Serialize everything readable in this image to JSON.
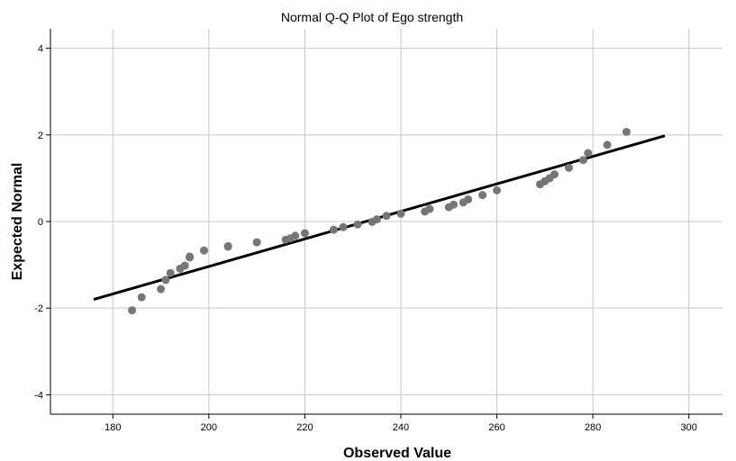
{
  "chart_data": {
    "type": "scatter",
    "title": "Normal Q-Q Plot of Ego strength",
    "xlabel": "Observed Value",
    "ylabel": "Expected Normal",
    "xlim": [
      167,
      307
    ],
    "ylim": [
      -4.45,
      4.45
    ],
    "xticks": [
      180,
      200,
      220,
      240,
      260,
      280,
      300
    ],
    "yticks": [
      -4,
      -2,
      0,
      2,
      4
    ],
    "grid": true,
    "colors": {
      "points": "#767676",
      "line": "#000000",
      "grid": "#c8c8c8",
      "axis": "#000000"
    },
    "points": [
      [
        184,
        -2.05
      ],
      [
        186,
        -1.75
      ],
      [
        190,
        -1.56
      ],
      [
        191,
        -1.35
      ],
      [
        192,
        -1.19
      ],
      [
        194,
        -1.09
      ],
      [
        195,
        -1.02
      ],
      [
        196,
        -0.83
      ],
      [
        196,
        -0.81
      ],
      [
        199,
        -0.67
      ],
      [
        204,
        -0.57
      ],
      [
        204,
        -0.58
      ],
      [
        210,
        -0.48
      ],
      [
        216,
        -0.42
      ],
      [
        217,
        -0.39
      ],
      [
        218,
        -0.33
      ],
      [
        220,
        -0.27
      ],
      [
        226,
        -0.19
      ],
      [
        228,
        -0.13
      ],
      [
        231,
        -0.07
      ],
      [
        234,
        -0.01
      ],
      [
        235,
        0.05
      ],
      [
        237,
        0.13
      ],
      [
        240,
        0.18
      ],
      [
        245,
        0.23
      ],
      [
        246,
        0.29
      ],
      [
        250,
        0.33
      ],
      [
        251,
        0.39
      ],
      [
        253,
        0.44
      ],
      [
        254,
        0.51
      ],
      [
        257,
        0.61
      ],
      [
        260,
        0.72
      ],
      [
        269,
        0.86
      ],
      [
        270,
        0.93
      ],
      [
        271,
        1.0
      ],
      [
        272,
        1.09
      ],
      [
        275,
        1.24
      ],
      [
        278,
        1.42
      ],
      [
        279,
        1.58
      ],
      [
        283,
        1.77
      ],
      [
        287,
        2.07
      ]
    ],
    "reference_line": [
      [
        176,
        -1.8
      ],
      [
        295,
        1.98
      ]
    ]
  }
}
